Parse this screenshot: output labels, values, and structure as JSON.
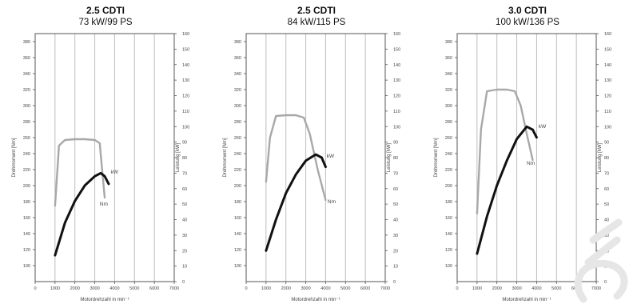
{
  "chart_data": [
    {
      "type": "line",
      "title": "2.5 CDTI",
      "subtitle": "73 kW/99 PS",
      "xlabel": "Motordrehzahl in min⁻¹",
      "ylabel": "Drehmoment [Nm]",
      "y2label": "Leistung [kW]",
      "xlim": [
        0,
        7000
      ],
      "ylim": [
        80,
        390
      ],
      "y2lim": [
        0,
        160
      ],
      "x_ticks": [
        "0",
        "1000",
        "2000",
        "3000",
        "4000",
        "5000",
        "6000",
        "7000"
      ],
      "y_ticks": [
        "100",
        "120",
        "140",
        "160",
        "180",
        "200",
        "220",
        "240",
        "260",
        "280",
        "300",
        "320",
        "340",
        "360",
        "380"
      ],
      "y2_ticks": [
        "0",
        "10",
        "20",
        "30",
        "40",
        "50",
        "60",
        "70",
        "80",
        "90",
        "100",
        "110",
        "120",
        "130",
        "140",
        "150",
        "160"
      ],
      "grid": true,
      "series": [
        {
          "name": "Nm",
          "axis": "left",
          "color": "#a8a8a8",
          "x": [
            1000,
            1200,
            1500,
            2000,
            2500,
            3000,
            3250,
            3350,
            3500
          ],
          "y": [
            175,
            250,
            257,
            258,
            258,
            257,
            253,
            225,
            185
          ]
        },
        {
          "name": "kW",
          "axis": "right",
          "color": "#111111",
          "x": [
            1000,
            1500,
            2000,
            2500,
            3000,
            3300,
            3500,
            3700
          ],
          "y": [
            17,
            38,
            52,
            62,
            68,
            70,
            68,
            63
          ]
        }
      ],
      "annotations": [
        {
          "text": "kW",
          "x": 3800,
          "y": 215
        },
        {
          "text": "Nm",
          "x": 3250,
          "y": 175
        }
      ]
    },
    {
      "type": "line",
      "title": "2.5 CDTI",
      "subtitle": "84 kW/115 PS",
      "xlabel": "Motordrehzahl in min⁻¹",
      "ylabel": "Drehmoment [Nm]",
      "y2label": "Leistung [kW]",
      "xlim": [
        0,
        7000
      ],
      "ylim": [
        80,
        390
      ],
      "y2lim": [
        0,
        160
      ],
      "x_ticks": [
        "0",
        "1000",
        "2000",
        "3000",
        "4000",
        "5000",
        "6000",
        "7000"
      ],
      "y_ticks": [
        "100",
        "120",
        "140",
        "160",
        "180",
        "200",
        "220",
        "240",
        "260",
        "280",
        "300",
        "320",
        "340",
        "360",
        "380"
      ],
      "y2_ticks": [
        "0",
        "10",
        "20",
        "30",
        "40",
        "50",
        "60",
        "70",
        "80",
        "90",
        "100",
        "110",
        "120",
        "130",
        "140",
        "150",
        "160"
      ],
      "grid": true,
      "series": [
        {
          "name": "Nm",
          "axis": "left",
          "color": "#a8a8a8",
          "x": [
            1000,
            1200,
            1500,
            2000,
            2500,
            2900,
            3200,
            3600,
            4000
          ],
          "y": [
            205,
            260,
            287,
            288,
            288,
            285,
            265,
            220,
            182
          ]
        },
        {
          "name": "kW",
          "axis": "right",
          "color": "#111111",
          "x": [
            1000,
            1500,
            2000,
            2500,
            3000,
            3500,
            3800,
            4000
          ],
          "y": [
            20,
            40,
            57,
            69,
            78,
            82,
            80,
            74
          ]
        },
        {
          "name": "",
          "axis": "left",
          "color": "#a8a8a8",
          "x": [],
          "y": []
        }
      ],
      "annotations": [
        {
          "text": "kW",
          "x": 4050,
          "y": 235
        },
        {
          "text": "Nm",
          "x": 4100,
          "y": 178
        }
      ]
    },
    {
      "type": "line",
      "title": "3.0 CDTI",
      "subtitle": "100 kW/136 PS",
      "xlabel": "Motordrehzahl in min⁻¹",
      "ylabel": "Drehmoment [Nm]",
      "y2label": "Leistung [kW]",
      "xlim": [
        0,
        7000
      ],
      "ylim": [
        80,
        390
      ],
      "y2lim": [
        0,
        160
      ],
      "x_ticks": [
        "0",
        "1000",
        "2000",
        "3000",
        "4000",
        "5000",
        "6000",
        "7000"
      ],
      "y_ticks": [
        "100",
        "120",
        "140",
        "160",
        "180",
        "200",
        "220",
        "240",
        "260",
        "280",
        "300",
        "320",
        "340",
        "360",
        "380"
      ],
      "y2_ticks": [
        "0",
        "10",
        "20",
        "30",
        "40",
        "50",
        "60",
        "70",
        "80",
        "90",
        "100",
        "110",
        "120",
        "130",
        "140",
        "150",
        "160"
      ],
      "grid": true,
      "series": [
        {
          "name": "Nm",
          "axis": "left",
          "color": "#a8a8a8",
          "x": [
            1000,
            1200,
            1500,
            2000,
            2500,
            2900,
            3200,
            3500,
            3800
          ],
          "y": [
            165,
            270,
            318,
            320,
            320,
            318,
            300,
            265,
            232
          ]
        },
        {
          "name": "kW",
          "axis": "right",
          "color": "#111111",
          "x": [
            1000,
            1500,
            2000,
            2500,
            3000,
            3500,
            3800,
            4000
          ],
          "y": [
            18,
            42,
            62,
            78,
            92,
            100,
            98,
            93
          ]
        }
      ],
      "annotations": [
        {
          "text": "kW",
          "x": 4100,
          "y": 272
        },
        {
          "text": "Nm",
          "x": 3500,
          "y": 226
        }
      ]
    }
  ],
  "colors": {
    "torque": "#a8a8a8",
    "power": "#111111",
    "grid": "#bdbdbd",
    "axis": "#555555"
  }
}
